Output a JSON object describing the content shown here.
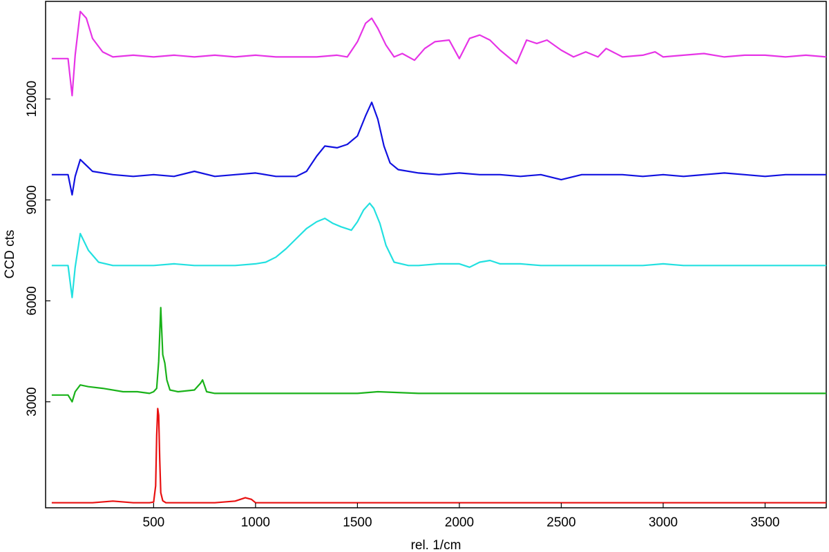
{
  "chart_data": {
    "type": "line",
    "title": "",
    "xlabel": "rel. 1/cm",
    "ylabel": "CCD cts",
    "xlim": [
      -30,
      3800
    ],
    "ylim": [
      -150,
      14900
    ],
    "xticks": [
      500,
      1000,
      1500,
      2000,
      2500,
      3000,
      3500
    ],
    "xtick_labels": [
      "500",
      "1000",
      "1500",
      "2000",
      "2500",
      "3000",
      "3500"
    ],
    "yticks": [
      3000,
      6000,
      9000,
      12000
    ],
    "ytick_labels": [
      "3000",
      "6000",
      "9000",
      "12000"
    ],
    "grid": false,
    "legend": "none",
    "series": [
      {
        "color": "#e633e6",
        "x": [
          0,
          80,
          100,
          115,
          140,
          170,
          200,
          250,
          300,
          400,
          500,
          600,
          700,
          800,
          900,
          1000,
          1100,
          1200,
          1300,
          1400,
          1450,
          1500,
          1540,
          1570,
          1600,
          1640,
          1680,
          1720,
          1780,
          1830,
          1880,
          1950,
          2000,
          2050,
          2100,
          2150,
          2200,
          2280,
          2330,
          2380,
          2430,
          2500,
          2560,
          2620,
          2680,
          2720,
          2800,
          2900,
          2960,
          3000,
          3100,
          3200,
          3300,
          3400,
          3500,
          3600,
          3700,
          3800
        ],
        "y": [
          13200,
          13200,
          12100,
          13300,
          14600,
          14400,
          13800,
          13400,
          13250,
          13300,
          13250,
          13300,
          13250,
          13300,
          13250,
          13300,
          13250,
          13250,
          13250,
          13300,
          13250,
          13700,
          14250,
          14400,
          14100,
          13600,
          13250,
          13350,
          13150,
          13500,
          13700,
          13750,
          13200,
          13800,
          13900,
          13750,
          13450,
          13050,
          13750,
          13650,
          13750,
          13450,
          13250,
          13400,
          13250,
          13500,
          13250,
          13300,
          13400,
          13250,
          13300,
          13350,
          13250,
          13300,
          13300,
          13250,
          13300,
          13250
        ]
      },
      {
        "color": "#1111e0",
        "x": [
          0,
          80,
          100,
          115,
          140,
          200,
          300,
          400,
          500,
          600,
          700,
          800,
          900,
          1000,
          1100,
          1200,
          1250,
          1300,
          1340,
          1400,
          1450,
          1500,
          1540,
          1570,
          1600,
          1630,
          1660,
          1700,
          1800,
          1900,
          2000,
          2100,
          2200,
          2300,
          2400,
          2500,
          2600,
          2700,
          2800,
          2900,
          3000,
          3100,
          3200,
          3300,
          3400,
          3500,
          3600,
          3700,
          3800
        ],
        "y": [
          9750,
          9750,
          9150,
          9700,
          10200,
          9850,
          9750,
          9700,
          9750,
          9700,
          9850,
          9700,
          9750,
          9800,
          9700,
          9700,
          9850,
          10300,
          10600,
          10550,
          10650,
          10900,
          11500,
          11900,
          11400,
          10600,
          10100,
          9900,
          9800,
          9750,
          9800,
          9750,
          9750,
          9700,
          9750,
          9600,
          9750,
          9750,
          9750,
          9700,
          9750,
          9700,
          9750,
          9800,
          9750,
          9700,
          9750,
          9750,
          9750
        ]
      },
      {
        "color": "#22e0e0",
        "x": [
          0,
          80,
          100,
          115,
          140,
          180,
          230,
          300,
          400,
          500,
          600,
          700,
          800,
          900,
          1000,
          1050,
          1100,
          1150,
          1200,
          1250,
          1300,
          1340,
          1380,
          1420,
          1470,
          1500,
          1530,
          1560,
          1580,
          1610,
          1640,
          1680,
          1750,
          1800,
          1900,
          2000,
          2050,
          2100,
          2150,
          2200,
          2300,
          2400,
          2500,
          2600,
          2700,
          2800,
          2900,
          3000,
          3100,
          3200,
          3300,
          3400,
          3500,
          3600,
          3700,
          3800
        ],
        "y": [
          7050,
          7050,
          6100,
          7000,
          8000,
          7500,
          7150,
          7050,
          7050,
          7050,
          7100,
          7050,
          7050,
          7050,
          7100,
          7150,
          7300,
          7550,
          7850,
          8150,
          8350,
          8450,
          8300,
          8200,
          8100,
          8350,
          8700,
          8900,
          8750,
          8300,
          7650,
          7150,
          7050,
          7050,
          7100,
          7100,
          7000,
          7150,
          7200,
          7100,
          7100,
          7050,
          7050,
          7050,
          7050,
          7050,
          7050,
          7100,
          7050,
          7050,
          7050,
          7050,
          7050,
          7050,
          7050,
          7050
        ]
      },
      {
        "color": "#19b219",
        "x": [
          0,
          80,
          100,
          115,
          140,
          180,
          250,
          350,
          420,
          480,
          500,
          515,
          525,
          535,
          545,
          555,
          565,
          580,
          620,
          700,
          730,
          740,
          760,
          800,
          900,
          1000,
          1200,
          1500,
          1600,
          1800,
          2000,
          2500,
          3000,
          3500,
          3800
        ],
        "y": [
          3200,
          3200,
          3000,
          3300,
          3500,
          3450,
          3400,
          3300,
          3300,
          3250,
          3300,
          3400,
          4200,
          5800,
          4400,
          4150,
          3650,
          3350,
          3300,
          3350,
          3550,
          3650,
          3300,
          3250,
          3250,
          3250,
          3250,
          3250,
          3300,
          3250,
          3250,
          3250,
          3250,
          3250,
          3250
        ]
      },
      {
        "color": "#e81010",
        "x": [
          0,
          100,
          200,
          300,
          400,
          480,
          500,
          510,
          515,
          520,
          525,
          530,
          535,
          545,
          560,
          600,
          700,
          800,
          900,
          950,
          980,
          1000,
          1100,
          1500,
          2000,
          2500,
          3000,
          3500,
          3800
        ],
        "y": [
          0,
          0,
          0,
          50,
          0,
          0,
          20,
          500,
          2000,
          2800,
          2600,
          1300,
          300,
          60,
          0,
          0,
          0,
          0,
          50,
          150,
          100,
          0,
          0,
          0,
          0,
          0,
          0,
          0,
          0
        ]
      }
    ]
  }
}
